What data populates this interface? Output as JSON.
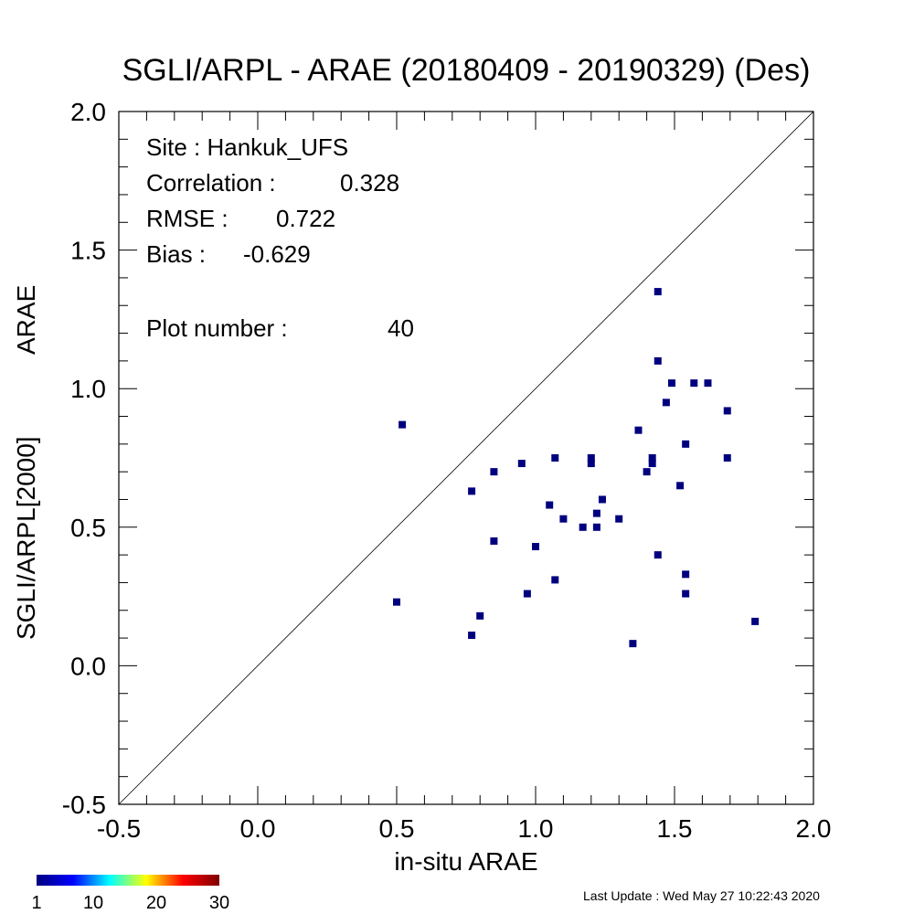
{
  "chart_data": {
    "type": "scatter",
    "title": "SGLI/ARPL - ARAE (20180409 - 20190329) (Des)",
    "xlabel": "in-situ ARAE",
    "ylabel_left": "SGLI/ARPL[2000]",
    "ylabel_right": "ARAE",
    "xlim": [
      -0.5,
      2.0
    ],
    "ylim": [
      -0.5,
      2.0
    ],
    "x_ticks": [
      "-0.5",
      "0.0",
      "0.5",
      "1.0",
      "1.5",
      "2.0"
    ],
    "y_ticks": [
      "-0.5",
      "0.0",
      "0.5",
      "1.0",
      "1.5",
      "2.0"
    ],
    "one_to_one_line": true,
    "grid": false,
    "marker_color": "#00007f",
    "stats": {
      "site_label": "Site : Hankuk_UFS",
      "correlation_label": "Correlation :",
      "correlation_value": "0.328",
      "rmse_label": "RMSE :",
      "rmse_value": "0.722",
      "bias_label": "Bias :",
      "bias_value": "-0.629",
      "plot_number_label": "Plot number :",
      "plot_number_value": "40"
    },
    "points": [
      {
        "x": 0.5,
        "y": 0.23
      },
      {
        "x": 0.52,
        "y": 0.87
      },
      {
        "x": 0.77,
        "y": 0.63
      },
      {
        "x": 0.77,
        "y": 0.11
      },
      {
        "x": 0.8,
        "y": 0.18
      },
      {
        "x": 0.85,
        "y": 0.7
      },
      {
        "x": 0.85,
        "y": 0.45
      },
      {
        "x": 0.95,
        "y": 0.73
      },
      {
        "x": 0.97,
        "y": 0.26
      },
      {
        "x": 1.0,
        "y": 0.43
      },
      {
        "x": 1.05,
        "y": 0.58
      },
      {
        "x": 1.07,
        "y": 0.75
      },
      {
        "x": 1.07,
        "y": 0.31
      },
      {
        "x": 1.1,
        "y": 0.53
      },
      {
        "x": 1.17,
        "y": 0.5
      },
      {
        "x": 1.2,
        "y": 0.75
      },
      {
        "x": 1.2,
        "y": 0.73
      },
      {
        "x": 1.22,
        "y": 0.55
      },
      {
        "x": 1.22,
        "y": 0.5
      },
      {
        "x": 1.24,
        "y": 0.6
      },
      {
        "x": 1.3,
        "y": 0.53
      },
      {
        "x": 1.35,
        "y": 0.08
      },
      {
        "x": 1.37,
        "y": 0.85
      },
      {
        "x": 1.4,
        "y": 0.7
      },
      {
        "x": 1.42,
        "y": 0.75
      },
      {
        "x": 1.42,
        "y": 0.73
      },
      {
        "x": 1.44,
        "y": 1.35
      },
      {
        "x": 1.44,
        "y": 1.1
      },
      {
        "x": 1.44,
        "y": 0.4
      },
      {
        "x": 1.47,
        "y": 0.95
      },
      {
        "x": 1.49,
        "y": 1.02
      },
      {
        "x": 1.52,
        "y": 0.65
      },
      {
        "x": 1.54,
        "y": 0.8
      },
      {
        "x": 1.54,
        "y": 0.33
      },
      {
        "x": 1.54,
        "y": 0.26
      },
      {
        "x": 1.57,
        "y": 1.02
      },
      {
        "x": 1.62,
        "y": 1.02
      },
      {
        "x": 1.69,
        "y": 0.92
      },
      {
        "x": 1.69,
        "y": 0.75
      },
      {
        "x": 1.79,
        "y": 0.16
      }
    ],
    "colorbar": {
      "labels": [
        "1",
        "10",
        "20",
        "30"
      ],
      "values": [
        1,
        10,
        20,
        30
      ],
      "range": [
        1,
        30
      ],
      "colors": [
        "#00007f",
        "#0000ff",
        "#00ffff",
        "#ffff00",
        "#ff0000",
        "#7f0000"
      ]
    }
  },
  "footer": {
    "last_update": "Last Update : Wed May 27 10:22:43 2020"
  }
}
